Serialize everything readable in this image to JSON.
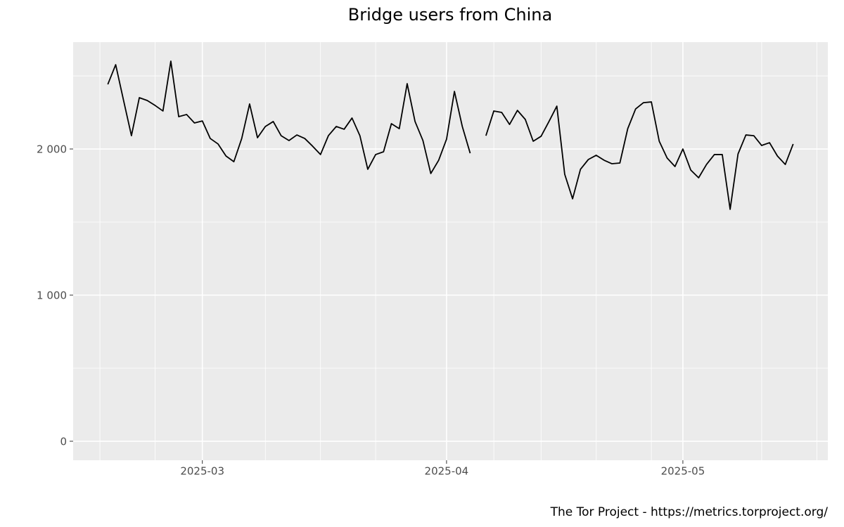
{
  "chart_data": {
    "type": "line",
    "title": "Bridge users from China",
    "caption": "The Tor Project - https://metrics.torproject.org/",
    "values": [
      2442,
      2577,
      2332,
      2091,
      2351,
      2332,
      2298,
      2260,
      2601,
      2221,
      2236,
      2178,
      2192,
      2072,
      2034,
      1952,
      1913,
      2072,
      2308,
      2077,
      2154,
      2188,
      2091,
      2058,
      2096,
      2072,
      2019,
      1962,
      2091,
      2154,
      2135,
      2212,
      2091,
      1861,
      1962,
      1981,
      2173,
      2139,
      2447,
      2188,
      2058,
      1832,
      1923,
      2067,
      2394,
      2154,
      1971,
      null,
      2091,
      2260,
      2250,
      2168,
      2264,
      2202,
      2053,
      2087,
      2188,
      2293,
      1827,
      1659,
      1861,
      1928,
      1957,
      1923,
      1899,
      1904,
      2139,
      2274,
      2317,
      2322,
      2053,
      1938,
      1880,
      2000,
      1856,
      1803,
      1894,
      1962,
      1962,
      1587,
      1966,
      2096,
      2091,
      2024,
      2043,
      1952,
      1894,
      2034
    ],
    "color": "#000000",
    "xlim": [
      -4.4,
      91.4
    ],
    "xticks": [
      {
        "value": 12,
        "label": "2025-03"
      },
      {
        "value": 43,
        "label": "2025-04"
      },
      {
        "value": 73,
        "label": "2025-05"
      }
    ],
    "xminorticks": [
      -1,
      6,
      20,
      27,
      34,
      49,
      55,
      62,
      69,
      83,
      90
    ],
    "ylim": [
      -130,
      2731
    ],
    "yticks": [
      0,
      {
        "value": 1000,
        "label": "1 000"
      },
      {
        "value": 2000,
        "label": "2 000"
      }
    ],
    "yminorticks": [
      500,
      1500,
      2500
    ],
    "grid": true
  }
}
